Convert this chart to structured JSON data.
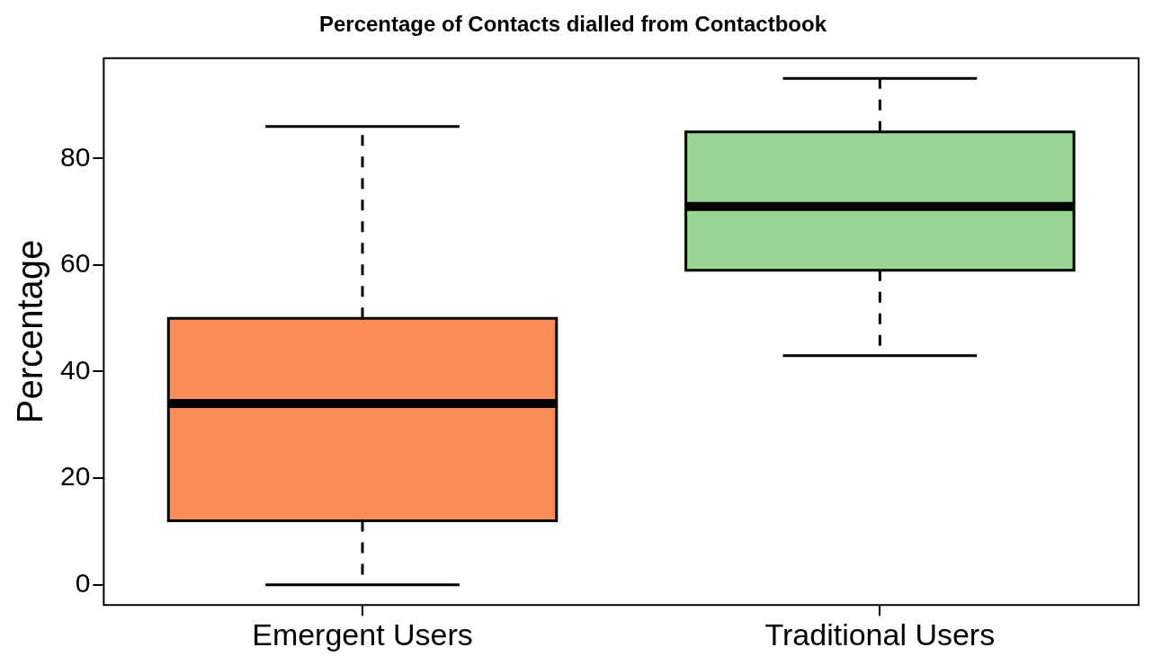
{
  "chart_data": {
    "type": "box",
    "title": "Percentage of Contacts dialled from Contactbook",
    "ylabel": "Percentage",
    "categories": [
      "Emergent Users",
      "Traditional Users"
    ],
    "colors": [
      "#fc8d59",
      "#99d594"
    ],
    "boxes": [
      {
        "low": 0,
        "q1": 12,
        "median": 34,
        "q3": 50,
        "high": 86
      },
      {
        "low": 43,
        "q1": 59,
        "median": 71,
        "q3": 85,
        "high": 95
      }
    ],
    "ylim": [
      -3.8,
      98.8
    ],
    "yticks": [
      0,
      20,
      40,
      60,
      80
    ],
    "grid": false,
    "legend": false
  }
}
